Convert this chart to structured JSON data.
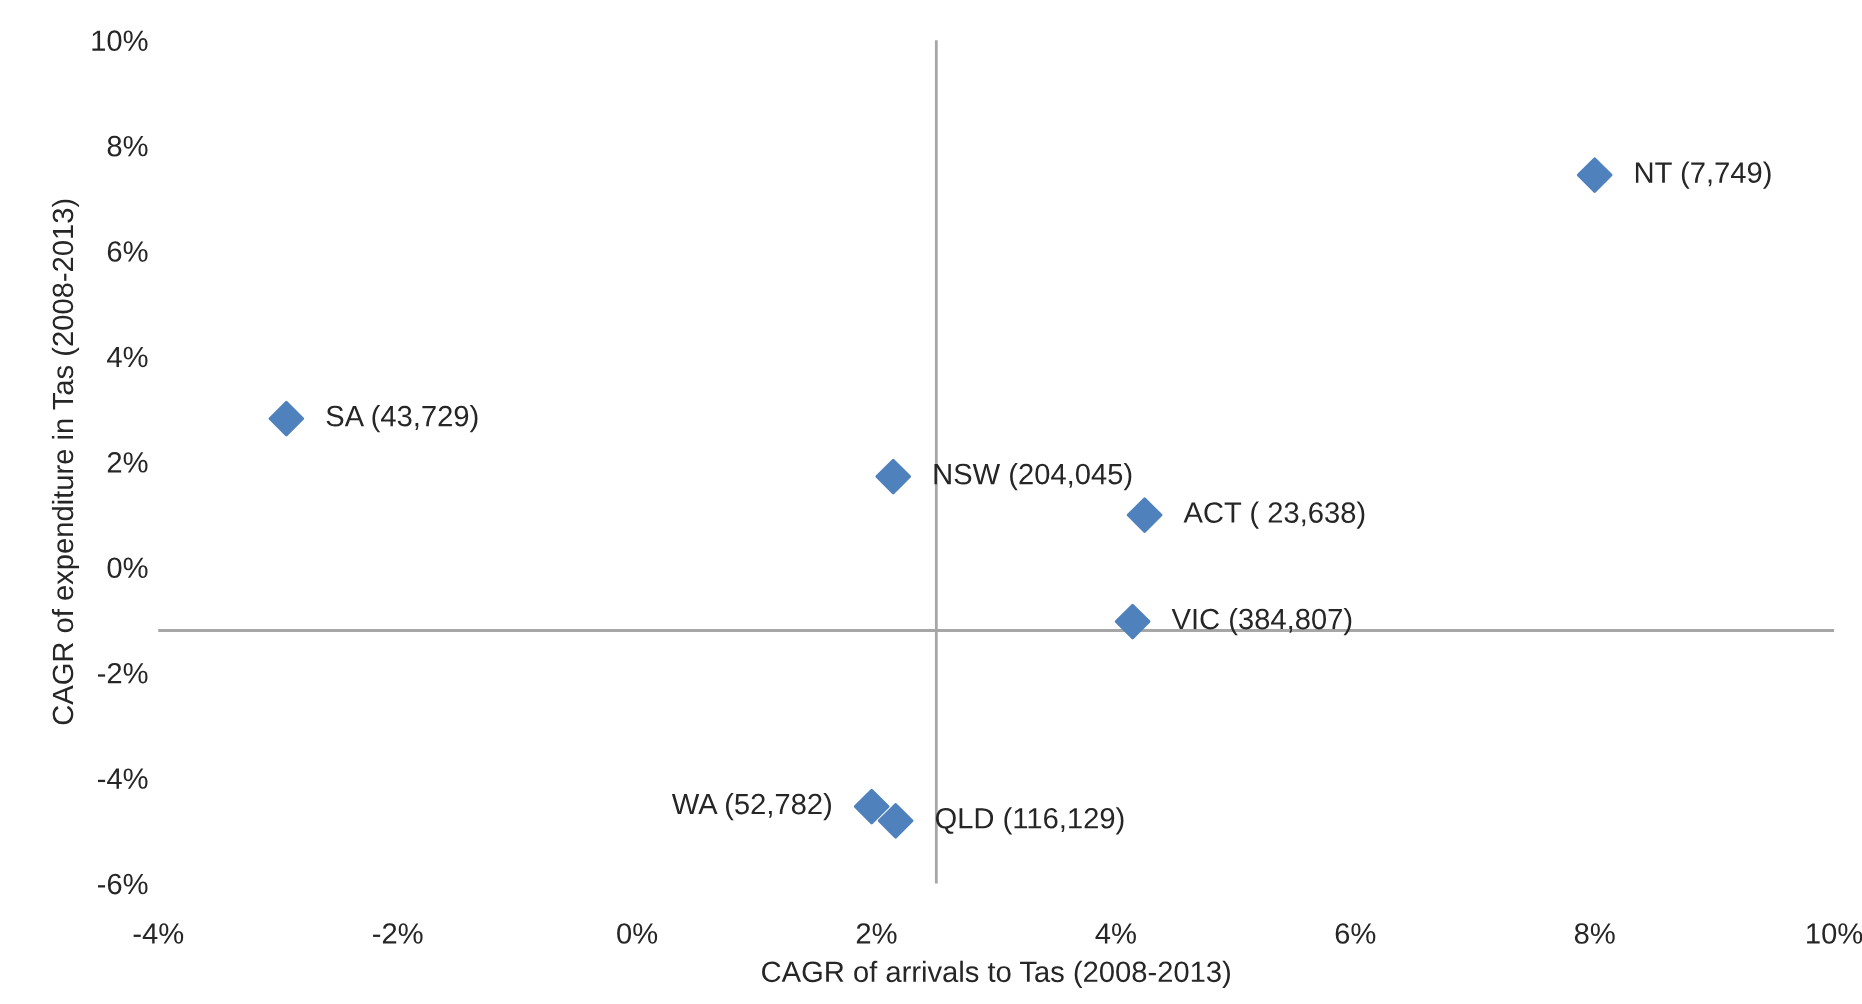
{
  "chart_data": {
    "type": "scatter",
    "xlabel": "CAGR of arrivals to Tas (2008-2013)",
    "ylabel": "CAGR of expenditure in Tas (2008-2013)",
    "marker": "diamond",
    "grid": false,
    "x": [
      8.0,
      -2.93,
      2.14,
      4.24,
      4.14,
      1.96,
      2.16
    ],
    "series": [
      {
        "color": "#4f81bd",
        "values": [
          7.44,
          2.82,
          1.72,
          0.99,
          -1.03,
          -4.54,
          -4.81
        ]
      }
    ],
    "annotations": [
      {
        "text": "NT (7,749)",
        "x": 8.0,
        "y": 7.44
      },
      {
        "text": "SA (43,729)",
        "x": -2.93,
        "y": 2.82
      },
      {
        "text": "NSW (204,045)",
        "x": 2.14,
        "y": 1.72
      },
      {
        "text": "ACT ( 23,638)",
        "x": 4.24,
        "y": 0.99
      },
      {
        "text": "VIC (384,807)",
        "x": 4.14,
        "y": -1.03
      },
      {
        "text": "WA (52,782)",
        "x": 1.96,
        "y": -4.54
      },
      {
        "text": "QLD (116,129)",
        "x": 2.16,
        "y": -4.81
      }
    ],
    "ref_lines": [
      {
        "axis": "x",
        "value": 2.5,
        "color": "#a6a6a6"
      },
      {
        "axis": "y",
        "value": -1.2,
        "color": "#a6a6a6"
      }
    ],
    "xlim": [
      -4,
      10
    ],
    "ylim": [
      -6,
      10
    ],
    "xticks": [
      {
        "value": -4,
        "label": "-4%"
      },
      {
        "value": -2,
        "label": "-2%"
      },
      {
        "value": 0,
        "label": "0%"
      },
      {
        "value": 2,
        "label": "2%"
      },
      {
        "value": 4,
        "label": "4%"
      },
      {
        "value": 6,
        "label": "6%"
      },
      {
        "value": 8,
        "label": "8%"
      },
      {
        "value": 10,
        "label": "10%"
      }
    ],
    "yticks": [
      {
        "value": -6,
        "label": "-6%"
      },
      {
        "value": -4,
        "label": "-4%"
      },
      {
        "value": -2,
        "label": "-2%"
      },
      {
        "value": 0,
        "label": "0%"
      },
      {
        "value": 2,
        "label": "2%"
      },
      {
        "value": 4,
        "label": "4%"
      },
      {
        "value": 6,
        "label": "6%"
      },
      {
        "value": 8,
        "label": "8%"
      },
      {
        "value": 10,
        "label": "10%"
      }
    ]
  }
}
